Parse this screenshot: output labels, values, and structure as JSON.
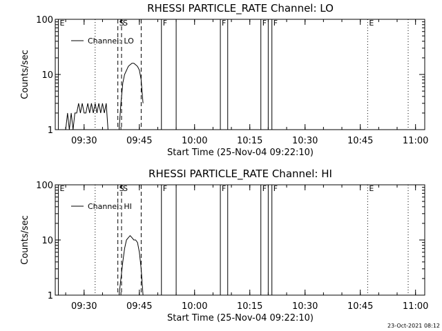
{
  "footer_timestamp": "23-Oct-2021 08:12",
  "chart_data": [
    {
      "type": "line",
      "title": "RHESSI PARTICLE_RATE Channel: LO",
      "xlabel": "Start Time (25-Nov-04 09:22:10)",
      "ylabel": "Counts/sec",
      "yscale": "log",
      "ylim": [
        1,
        100
      ],
      "xlim": [
        "09:22:10",
        "11:02:30"
      ],
      "y_ticks": [
        "1",
        "10",
        "100"
      ],
      "x_ticks": [
        "09:30",
        "09:45",
        "10:00",
        "10:15",
        "10:30",
        "10:45",
        "11:00"
      ],
      "legend": "top-left",
      "series": [
        {
          "name": "Channel: LO",
          "x": [
            "09:24:00",
            "09:25:00",
            "09:25:30",
            "09:26:00",
            "09:26:30",
            "09:27:00",
            "09:27:30",
            "09:28:00",
            "09:28:30",
            "09:29:00",
            "09:29:30",
            "09:30:00",
            "09:30:30",
            "09:31:00",
            "09:31:30",
            "09:32:00",
            "09:32:30",
            "09:33:00",
            "09:33:30",
            "09:34:00",
            "09:34:30",
            "09:35:00",
            "09:35:30",
            "09:36:00",
            "09:36:30",
            "09:37:00",
            "09:37:30",
            "09:38:00",
            "09:38:30",
            "09:39:00",
            "09:39:30",
            "09:40:00",
            "09:40:30",
            "09:41:00",
            "09:42:00",
            "09:42:30",
            "09:43:00",
            "09:43:30",
            "09:44:00",
            "09:44:30",
            "09:45:00",
            "09:45:30",
            "09:46:00"
          ],
          "y": [
            1,
            1,
            2,
            1,
            2,
            1,
            2,
            2,
            3,
            2,
            3,
            2,
            2,
            3,
            2,
            3,
            2,
            3,
            2,
            3,
            2,
            3,
            2,
            3,
            1,
            1,
            1,
            1,
            1,
            1,
            1,
            3,
            7,
            10,
            14,
            15,
            16,
            16,
            15,
            14,
            12,
            8,
            3
          ]
        }
      ]
    },
    {
      "type": "line",
      "title": "RHESSI PARTICLE_RATE Channel: HI",
      "xlabel": "Start Time (25-Nov-04 09:22:10)",
      "ylabel": "Counts/sec",
      "yscale": "log",
      "ylim": [
        1,
        100
      ],
      "xlim": [
        "09:22:10",
        "11:02:30"
      ],
      "y_ticks": [
        "1",
        "10",
        "100"
      ],
      "x_ticks": [
        "09:30",
        "09:45",
        "10:00",
        "10:15",
        "10:30",
        "10:45",
        "11:00"
      ],
      "legend": "top-left",
      "series": [
        {
          "name": "Channel: HI",
          "x": [
            "09:39:30",
            "09:40:00",
            "09:40:30",
            "09:41:00",
            "09:41:30",
            "09:42:00",
            "09:42:30",
            "09:43:00",
            "09:43:30",
            "09:44:00",
            "09:44:30",
            "09:45:00",
            "09:45:30",
            "09:46:00"
          ],
          "y": [
            1,
            2,
            4,
            7,
            10,
            11,
            12,
            11,
            10,
            10,
            9,
            6,
            3,
            1
          ]
        }
      ]
    }
  ],
  "markers": [
    {
      "label": "E",
      "time": "09:23:00",
      "style": "solid",
      "labeled": true
    },
    {
      "label": "",
      "time": "09:33:00",
      "style": "dotted",
      "labeled": false
    },
    {
      "label": "S",
      "time": "09:39:10",
      "style": "dashed",
      "labeled": true
    },
    {
      "label": "S",
      "time": "09:40:10",
      "style": "dashed",
      "labeled": true
    },
    {
      "label": "",
      "time": "09:45:30",
      "style": "dashed",
      "labeled": false
    },
    {
      "label": "F",
      "time": "09:51:00",
      "style": "solid",
      "labeled": true
    },
    {
      "label": "",
      "time": "09:55:00",
      "style": "solid",
      "labeled": false
    },
    {
      "label": "F",
      "time": "10:07:00",
      "style": "solid",
      "labeled": true
    },
    {
      "label": "",
      "time": "10:09:00",
      "style": "solid",
      "labeled": false
    },
    {
      "label": "F",
      "time": "10:18:00",
      "style": "solid",
      "labeled": true
    },
    {
      "label": "",
      "time": "10:20:00",
      "style": "solid",
      "labeled": false
    },
    {
      "label": "F",
      "time": "10:21:00",
      "style": "solid",
      "labeled": true
    },
    {
      "label": "E",
      "time": "10:47:00",
      "style": "dotted",
      "labeled": true
    },
    {
      "label": "",
      "time": "10:58:00",
      "style": "dotted",
      "labeled": false
    }
  ]
}
